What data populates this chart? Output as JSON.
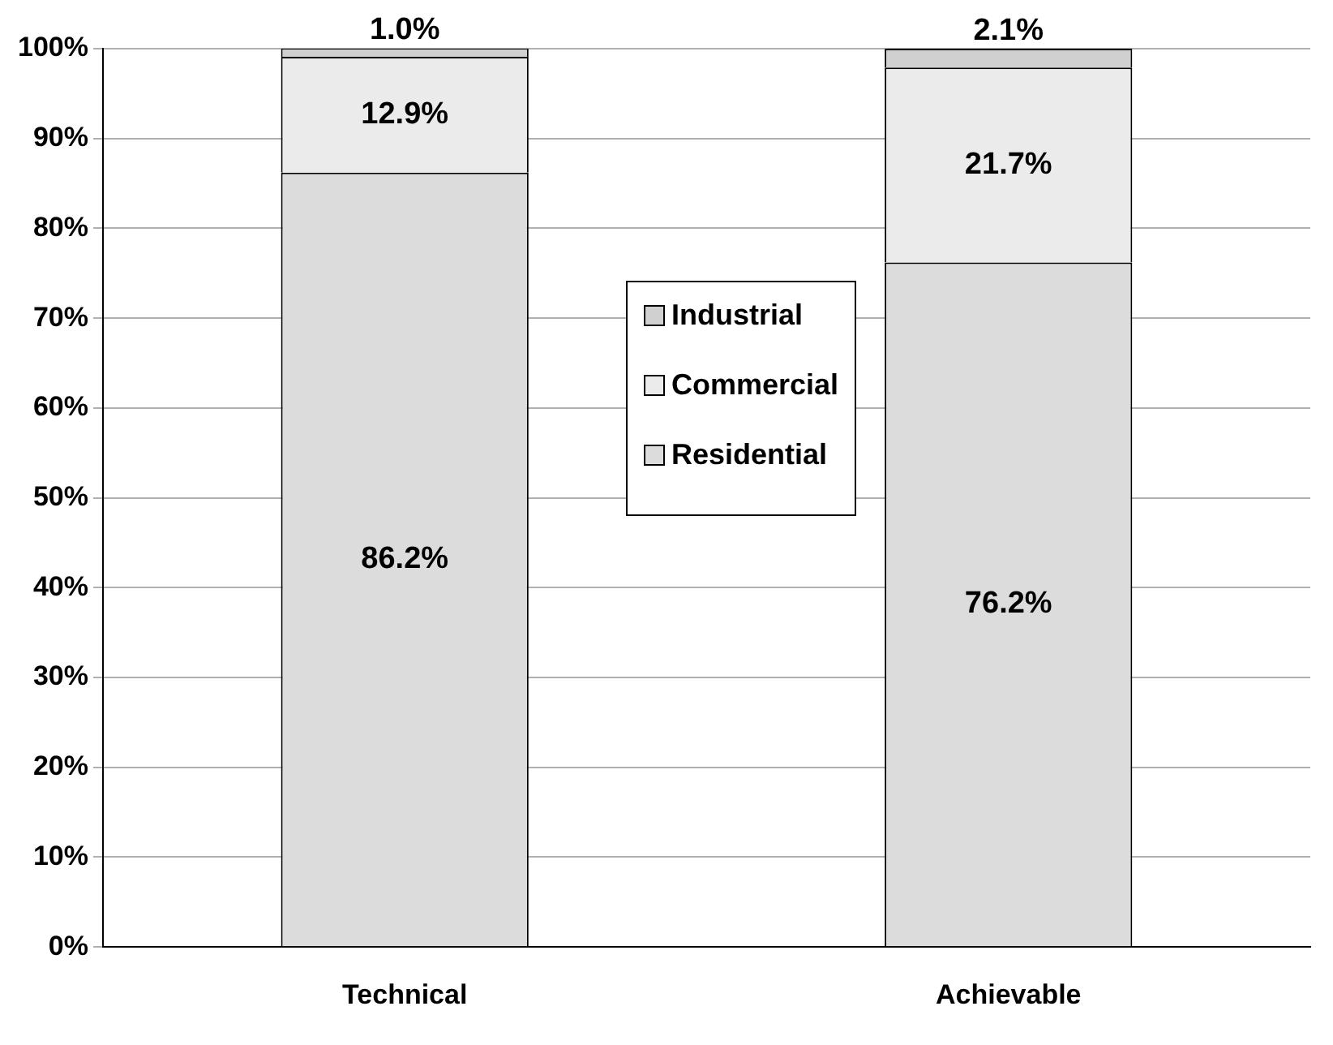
{
  "chart_data": {
    "type": "bar",
    "stacked": true,
    "categories": [
      "Technical",
      "Achievable"
    ],
    "series": [
      {
        "name": "Residential",
        "color": "#dcdcdc",
        "values": [
          86.2,
          76.2
        ],
        "value_labels": [
          "86.2%",
          "76.2%"
        ]
      },
      {
        "name": "Commercial",
        "color": "#ebebeb",
        "values": [
          12.9,
          21.7
        ],
        "value_labels": [
          "12.9%",
          "21.7%"
        ]
      },
      {
        "name": "Industrial",
        "color": "#d0d0d0",
        "values": [
          1.0,
          2.1
        ],
        "value_labels": [
          "1.0%",
          "2.1%"
        ]
      }
    ],
    "ylim": [
      0,
      100
    ],
    "yticks": [
      {
        "value": 0,
        "label": "0%"
      },
      {
        "value": 10,
        "label": "10%"
      },
      {
        "value": 20,
        "label": "20%"
      },
      {
        "value": 30,
        "label": "30%"
      },
      {
        "value": 40,
        "label": "40%"
      },
      {
        "value": 50,
        "label": "50%"
      },
      {
        "value": 60,
        "label": "60%"
      },
      {
        "value": 70,
        "label": "70%"
      },
      {
        "value": 80,
        "label": "80%"
      },
      {
        "value": 90,
        "label": "90%"
      },
      {
        "value": 100,
        "label": "100%"
      }
    ],
    "grid": "y",
    "legend": "center"
  }
}
